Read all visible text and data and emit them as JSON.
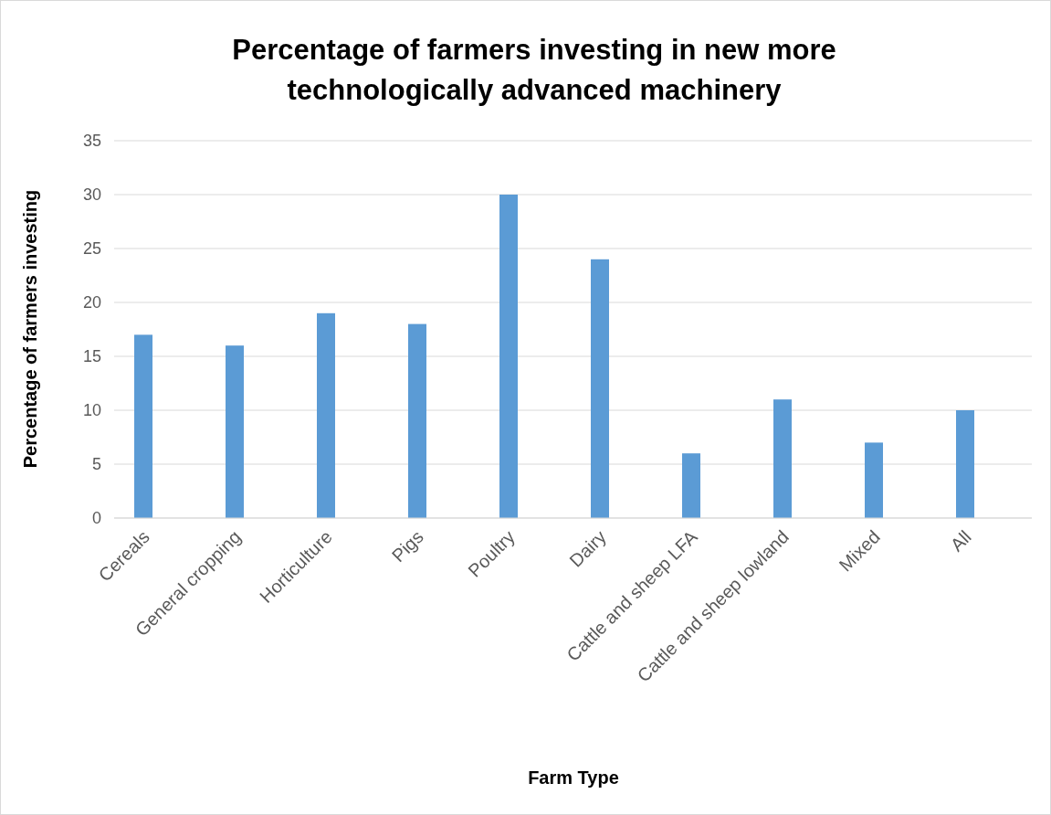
{
  "chart_data": {
    "type": "bar",
    "title": "Percentage of farmers investing in new more technologically advanced machinery",
    "xlabel": "Farm Type",
    "ylabel": "Percentage of farmers investing",
    "categories": [
      "Cereals",
      "General cropping",
      "Horticulture",
      "Pigs",
      "Poultry",
      "Dairy",
      "Cattle and sheep LFA",
      "Cattle and sheep lowland",
      "Mixed",
      "All"
    ],
    "values": [
      17,
      16,
      19,
      18,
      30,
      24,
      6,
      11,
      7,
      10
    ],
    "color": "#5b9bd5",
    "ylim": [
      0,
      35
    ],
    "yticks": [
      0,
      5,
      10,
      15,
      20,
      25,
      30,
      35
    ],
    "grid": "y"
  }
}
